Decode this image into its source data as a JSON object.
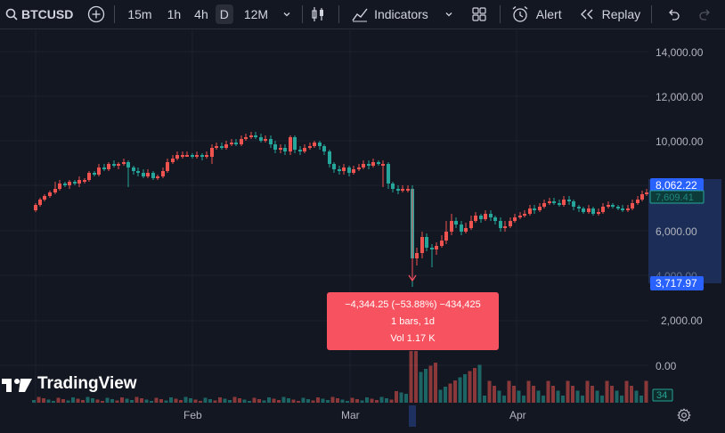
{
  "toolbar": {
    "symbol": "BTCUSD",
    "intervals": [
      "15m",
      "1h",
      "4h",
      "D",
      "12M"
    ],
    "active_interval": "D",
    "indicators_label": "Indicators",
    "alert_label": "Alert",
    "replay_label": "Replay",
    "icons": [
      "search-icon",
      "add-symbol-icon",
      "chevron-down-icon",
      "candles-icon",
      "indicators-icon",
      "templates-icon",
      "alert-icon",
      "replay-icon",
      "undo-icon",
      "redo-icon"
    ]
  },
  "chart": {
    "price_axis": [
      "14,000.00",
      "12,000.00",
      "10,000.00",
      "6,000.00",
      "4,000.00",
      "2,000.00",
      "0.00"
    ],
    "time_axis": [
      "Feb",
      "Mar",
      "Apr"
    ],
    "price_upper_label": "8,062.22",
    "price_lower_label": "3,717.97",
    "hidden_price_label": "7,609.41",
    "volume_label": "34"
  },
  "measure_tooltip": {
    "line1": "−4,344.25 (−53.88%) −434,425",
    "line2": "1 bars, 1d",
    "line3": "Vol 1.17 K"
  },
  "logo": {
    "text": "TradingView"
  },
  "colors": {
    "bg": "#131722",
    "up": "#26a69a",
    "down": "#ef5350",
    "accent": "#2962ff",
    "tooltip": "#f7525f"
  }
}
